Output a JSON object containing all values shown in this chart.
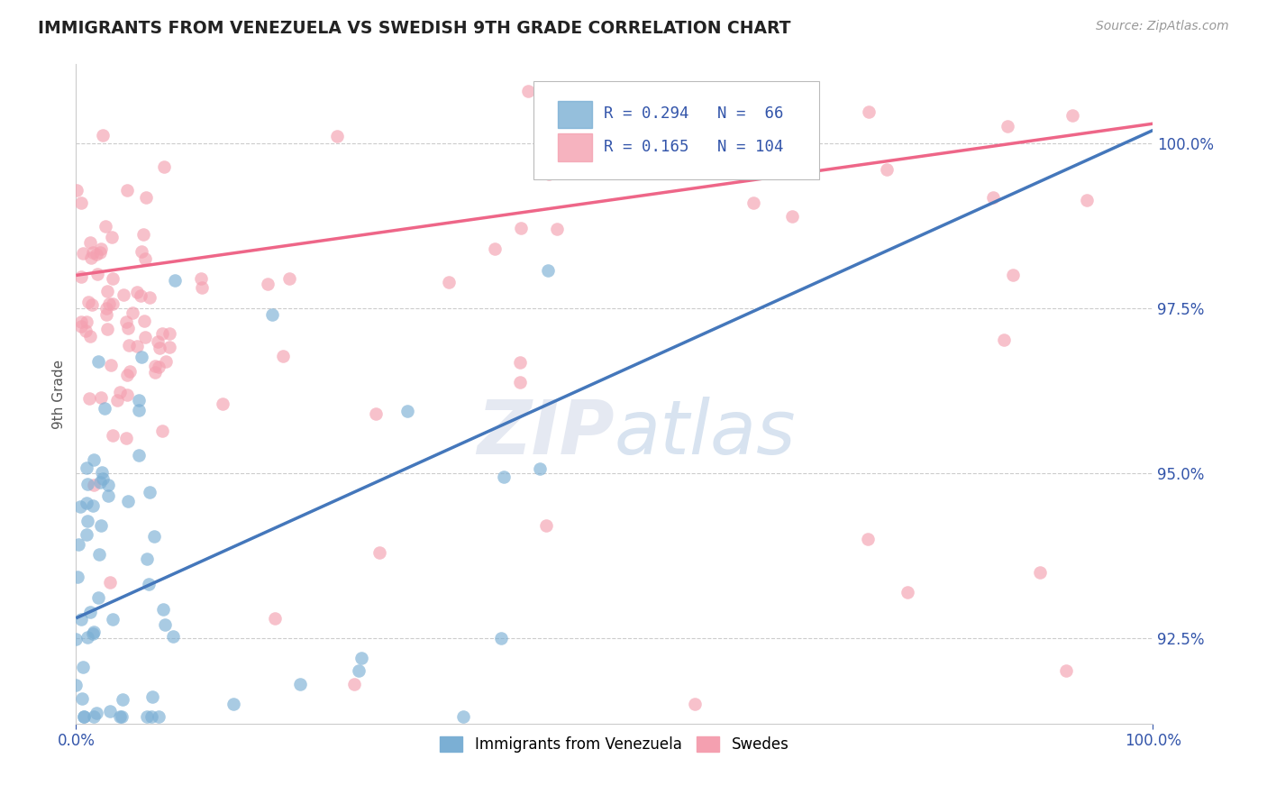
{
  "title": "IMMIGRANTS FROM VENEZUELA VS SWEDISH 9TH GRADE CORRELATION CHART",
  "source_text": "Source: ZipAtlas.com",
  "ylabel": "9th Grade",
  "xlim": [
    0.0,
    100.0
  ],
  "ylim": [
    91.2,
    101.2
  ],
  "y_ticks": [
    92.5,
    95.0,
    97.5,
    100.0
  ],
  "y_tick_labels": [
    "92.5%",
    "95.0%",
    "97.5%",
    "100.0%"
  ],
  "blue_R": 0.294,
  "blue_N": 66,
  "pink_R": 0.165,
  "pink_N": 104,
  "blue_color": "#7BAFD4",
  "pink_color": "#F4A0B0",
  "blue_line_color": "#4477BB",
  "pink_line_color": "#EE6688",
  "watermark_color": "#C8DCF0",
  "legend_blue_label": "Immigrants from Venezuela",
  "legend_pink_label": "Swedes",
  "blue_line_x0": 0.0,
  "blue_line_y0": 92.8,
  "blue_line_x1": 100.0,
  "blue_line_y1": 100.2,
  "pink_line_x0": 0.0,
  "pink_line_y0": 98.0,
  "pink_line_x1": 100.0,
  "pink_line_y1": 100.3
}
